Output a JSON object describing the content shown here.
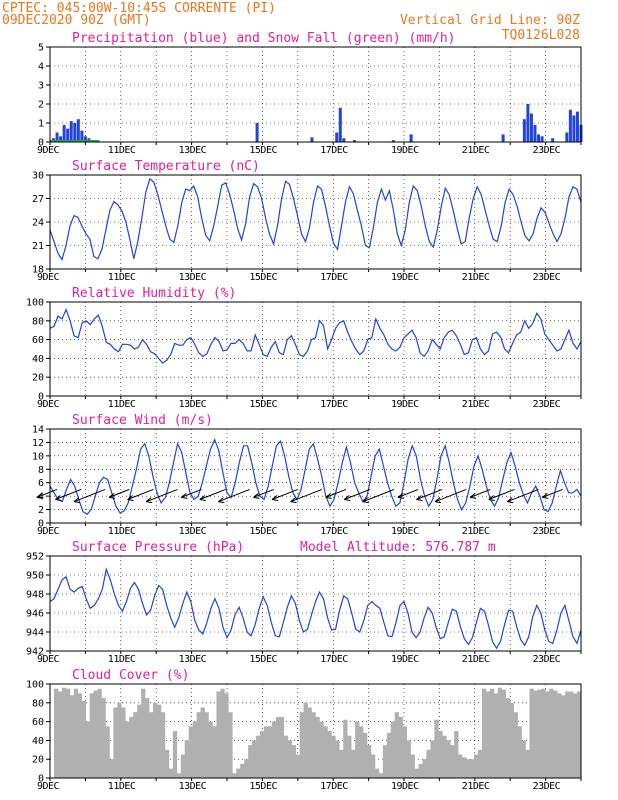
{
  "header": {
    "line1": "CPTEC:  045:00W-10:45S  CORRENTE (PI)",
    "line2_left": "09DEC2020 90Z (GMT)",
    "line2_right": "Vertical Grid Line: 90Z",
    "line3_right": "TQ0126L028"
  },
  "colors": {
    "header": "#e8781e",
    "title": "#e0209a",
    "series": "#2244dd",
    "snow": "#22aa44",
    "cloud": "#b0b0b0"
  },
  "x_tick_labels": [
    "9DEC",
    "11DEC",
    "13DEC",
    "15DEC",
    "17DEC",
    "19DEC",
    "21DEC",
    "23DEC"
  ],
  "chart_data": [
    {
      "id": "precip",
      "type": "bar",
      "title": "Precipitation (blue) and Snow Fall (green) (mm/h)",
      "ylim": [
        0,
        5
      ],
      "yticks": [
        "0",
        "1",
        "2",
        "3",
        "4",
        "5"
      ],
      "series": [
        {
          "name": "Precipitation",
          "color": "#2244dd",
          "points": [
            [
              0.1,
              0.2
            ],
            [
              0.2,
              0.5
            ],
            [
              0.3,
              0.3
            ],
            [
              0.4,
              0.9
            ],
            [
              0.5,
              0.7
            ],
            [
              0.6,
              1.1
            ],
            [
              0.7,
              1.0
            ],
            [
              0.8,
              1.2
            ],
            [
              0.9,
              0.6
            ],
            [
              1.0,
              0.3
            ],
            [
              1.1,
              0.2
            ],
            [
              5.85,
              1.0
            ],
            [
              7.4,
              0.25
            ],
            [
              8.1,
              0.5
            ],
            [
              8.2,
              1.8
            ],
            [
              8.3,
              0.2
            ],
            [
              8.6,
              0.1
            ],
            [
              9.7,
              0.1
            ],
            [
              10.2,
              0.4
            ],
            [
              12.8,
              0.4
            ],
            [
              13.4,
              1.2
            ],
            [
              13.5,
              2.0
            ],
            [
              13.6,
              1.5
            ],
            [
              13.7,
              0.9
            ],
            [
              13.8,
              0.4
            ],
            [
              13.9,
              0.3
            ],
            [
              14.2,
              0.2
            ],
            [
              14.6,
              0.5
            ],
            [
              14.7,
              1.7
            ],
            [
              14.8,
              1.4
            ],
            [
              14.9,
              1.6
            ],
            [
              15.0,
              0.9
            ]
          ]
        },
        {
          "name": "Snow Fall",
          "color": "#22aa44",
          "points": []
        }
      ]
    },
    {
      "id": "temp",
      "type": "line",
      "title": "Surface Temperature (nC)",
      "ylim": [
        18,
        30
      ],
      "yticks": [
        "18",
        "21",
        "24",
        "27",
        "30"
      ],
      "color": "#2244dd",
      "values": [
        23,
        21.5,
        20,
        19.2,
        21,
        23.5,
        24.8,
        24.6,
        23.5,
        22.5,
        21.8,
        19.6,
        19.3,
        20.5,
        23,
        25.5,
        26.6,
        26.2,
        25.4,
        24,
        21.8,
        19.3,
        21.5,
        24.5,
        27.8,
        29.5,
        29.1,
        27.5,
        25.5,
        23.5,
        21.8,
        21.4,
        23.5,
        26.5,
        28.2,
        28,
        28.6,
        27.2,
        24.5,
        22.3,
        21.6,
        23.5,
        26,
        28.7,
        29,
        27.5,
        25.5,
        23.2,
        21.7,
        23.8,
        27.2,
        28.9,
        28.5,
        27,
        24.5,
        22.4,
        21.2,
        23.6,
        27,
        29.2,
        28.8,
        27,
        24.8,
        22.5,
        21.5,
        23.3,
        26.5,
        28.6,
        28.2,
        26,
        23.5,
        21.3,
        20.5,
        23.5,
        26.5,
        28.5,
        27.6,
        25.5,
        23.5,
        21,
        20.7,
        23.3,
        26.5,
        28.2,
        26.8,
        28,
        25.5,
        22.5,
        21,
        23,
        26.5,
        28.6,
        28,
        26,
        23.5,
        21.5,
        20.8,
        23,
        26,
        28.3,
        27.5,
        25.5,
        23.2,
        21.2,
        21.5,
        24.5,
        27,
        28.5,
        27.5,
        25.5,
        23.5,
        21.8,
        21.5,
        23.5,
        26.5,
        28.2,
        27.5,
        26,
        24,
        22.2,
        21.6,
        22.5,
        24.5,
        25.8,
        25.2,
        23.8,
        22.5,
        21.5,
        22.5,
        24.5,
        27.2,
        28.5,
        28.2,
        26.5
      ]
    },
    {
      "id": "rh",
      "type": "line",
      "title": "Relative Humidity (%)",
      "ylim": [
        0,
        100
      ],
      "yticks": [
        "0",
        "20",
        "40",
        "60",
        "80",
        "100"
      ],
      "color": "#2244dd",
      "values": [
        72,
        74,
        85,
        82,
        92,
        80,
        64,
        62,
        78,
        80,
        76,
        82,
        86,
        74,
        57,
        55,
        50,
        47,
        55,
        55,
        54,
        50,
        52,
        60,
        55,
        47,
        45,
        40,
        35,
        38,
        44,
        56,
        54,
        54,
        60,
        62,
        55,
        46,
        42,
        45,
        55,
        62,
        58,
        48,
        49,
        56,
        56,
        60,
        56,
        48,
        48,
        65,
        55,
        44,
        42,
        52,
        58,
        46,
        44,
        60,
        64,
        55,
        44,
        42,
        48,
        60,
        62,
        80,
        75,
        50,
        60,
        72,
        78,
        80,
        68,
        58,
        50,
        44,
        48,
        60,
        62,
        82,
        72,
        65,
        55,
        50,
        48,
        52,
        62,
        66,
        70,
        62,
        46,
        42,
        48,
        60,
        55,
        50,
        62,
        68,
        70,
        64,
        55,
        44,
        46,
        60,
        62,
        50,
        44,
        48,
        66,
        68,
        63,
        50,
        46,
        56,
        65,
        68,
        80,
        72,
        77,
        88,
        82,
        66,
        60,
        54,
        48,
        50,
        60,
        70,
        56,
        50,
        58
      ]
    },
    {
      "id": "wind",
      "type": "line",
      "title": "Surface Wind (m/s)",
      "ylim": [
        0,
        14
      ],
      "yticks": [
        "0",
        "2",
        "4",
        "6",
        "8",
        "10",
        "12",
        "14"
      ],
      "color": "#2244dd",
      "values": [
        5.5,
        4.5,
        3.5,
        3.2,
        5,
        6.5,
        5.5,
        3.5,
        1.7,
        1.3,
        2,
        4,
        6,
        6.8,
        6.5,
        4.5,
        2.5,
        1.5,
        1.8,
        3,
        5.5,
        8,
        11,
        11.8,
        10,
        7,
        4.5,
        3,
        3.8,
        6,
        9,
        11.8,
        10.5,
        7.5,
        4.5,
        3.5,
        4,
        6,
        8.5,
        11,
        12.4,
        10.8,
        7.5,
        4.5,
        3.8,
        6,
        9,
        11.5,
        11.5,
        9,
        6,
        4,
        3.5,
        5.5,
        8.5,
        11.5,
        12.2,
        10,
        7,
        4.5,
        3.5,
        5,
        8,
        11,
        11.8,
        9.5,
        7,
        4,
        2.5,
        3.5,
        6,
        9,
        11.3,
        9,
        6,
        4.5,
        3.2,
        4,
        7,
        10,
        11,
        8.5,
        6,
        4,
        2.5,
        3,
        6,
        9.5,
        11.5,
        10,
        6.5,
        4,
        2.5,
        3.5,
        6.5,
        10,
        11.5,
        9,
        6,
        3.5,
        2,
        3,
        5.5,
        8.5,
        10,
        8,
        5.5,
        3.5,
        2.5,
        3.8,
        6.5,
        9,
        10.5,
        8.5,
        6,
        4.2,
        3,
        4.5,
        5.5,
        4,
        2,
        1.7,
        3,
        5.5,
        7.8,
        6,
        4.5,
        4.5,
        5,
        4
      ]
    },
    {
      "id": "pressure",
      "type": "line",
      "title": "Surface Pressure (hPa)",
      "annotation": "Model Altitude: 576.787 m",
      "ylim": [
        942,
        952
      ],
      "yticks": [
        "942",
        "944",
        "946",
        "948",
        "950",
        "952"
      ],
      "color": "#2244dd",
      "values": [
        947.2,
        947.5,
        948.5,
        949.5,
        949.8,
        948.5,
        948.2,
        948.6,
        948.8,
        947.5,
        946.5,
        946.8,
        947.5,
        948.5,
        950.6,
        949.5,
        948,
        946.8,
        946.2,
        947.2,
        948.6,
        949.2,
        948.5,
        947,
        945.8,
        946.3,
        947.8,
        948.9,
        948.5,
        946.8,
        945.5,
        944.5,
        945.5,
        947,
        948.2,
        947.2,
        945.2,
        944.2,
        943.8,
        945,
        946.5,
        947.5,
        946.5,
        944.5,
        943.4,
        944.2,
        945.8,
        946.6,
        945.5,
        944,
        943.6,
        944.8,
        946.5,
        947.7,
        946.8,
        945,
        943.6,
        943.5,
        945,
        946.6,
        947.8,
        947,
        945.2,
        944,
        944.3,
        945.8,
        947.2,
        948.2,
        947.5,
        945.5,
        944.2,
        944.3,
        946.3,
        947.8,
        947.5,
        946,
        944.3,
        944,
        945.2,
        946.8,
        947.2,
        946.8,
        946.5,
        945,
        943.6,
        943.5,
        945,
        946.8,
        947.2,
        946,
        944,
        943.4,
        944,
        945.5,
        946.6,
        946,
        944.5,
        943.3,
        943.5,
        945,
        946.4,
        946.2,
        944.6,
        943.3,
        942.7,
        943.4,
        945,
        946.5,
        946.2,
        944.7,
        943,
        942.3,
        943,
        944.8,
        946.3,
        946.2,
        944.6,
        943.2,
        942.6,
        943.5,
        945.6,
        946.8,
        946,
        944.2,
        943,
        942.8,
        944.2,
        946,
        946.8,
        945.2,
        943.5,
        942.8,
        944.2
      ]
    },
    {
      "id": "cloud",
      "type": "area",
      "title": "Cloud Cover (%)",
      "ylim": [
        0,
        100
      ],
      "yticks": [
        "0",
        "20",
        "40",
        "60",
        "80",
        "100"
      ],
      "color": "#b0b0b0",
      "values": [
        0,
        95,
        92,
        96,
        95,
        88,
        95,
        90,
        82,
        60,
        90,
        93,
        95,
        85,
        55,
        20,
        75,
        80,
        75,
        60,
        65,
        70,
        78,
        95,
        85,
        70,
        80,
        78,
        70,
        30,
        10,
        50,
        5,
        25,
        40,
        55,
        60,
        70,
        75,
        70,
        60,
        55,
        92,
        95,
        90,
        70,
        5,
        10,
        15,
        20,
        35,
        40,
        45,
        50,
        55,
        55,
        60,
        65,
        65,
        45,
        40,
        35,
        25,
        70,
        80,
        75,
        70,
        65,
        60,
        55,
        50,
        45,
        40,
        30,
        62,
        45,
        30,
        60,
        55,
        48,
        35,
        25,
        10,
        5,
        35,
        48,
        60,
        70,
        65,
        55,
        40,
        25,
        10,
        15,
        20,
        30,
        40,
        62,
        50,
        45,
        40,
        35,
        50,
        25,
        22,
        20,
        20,
        25,
        30,
        95,
        92,
        95,
        90,
        96,
        94,
        85,
        80,
        70,
        55,
        40,
        30,
        95,
        93,
        94,
        95,
        92,
        95,
        93,
        90,
        88,
        92,
        92,
        90,
        92
      ]
    }
  ]
}
